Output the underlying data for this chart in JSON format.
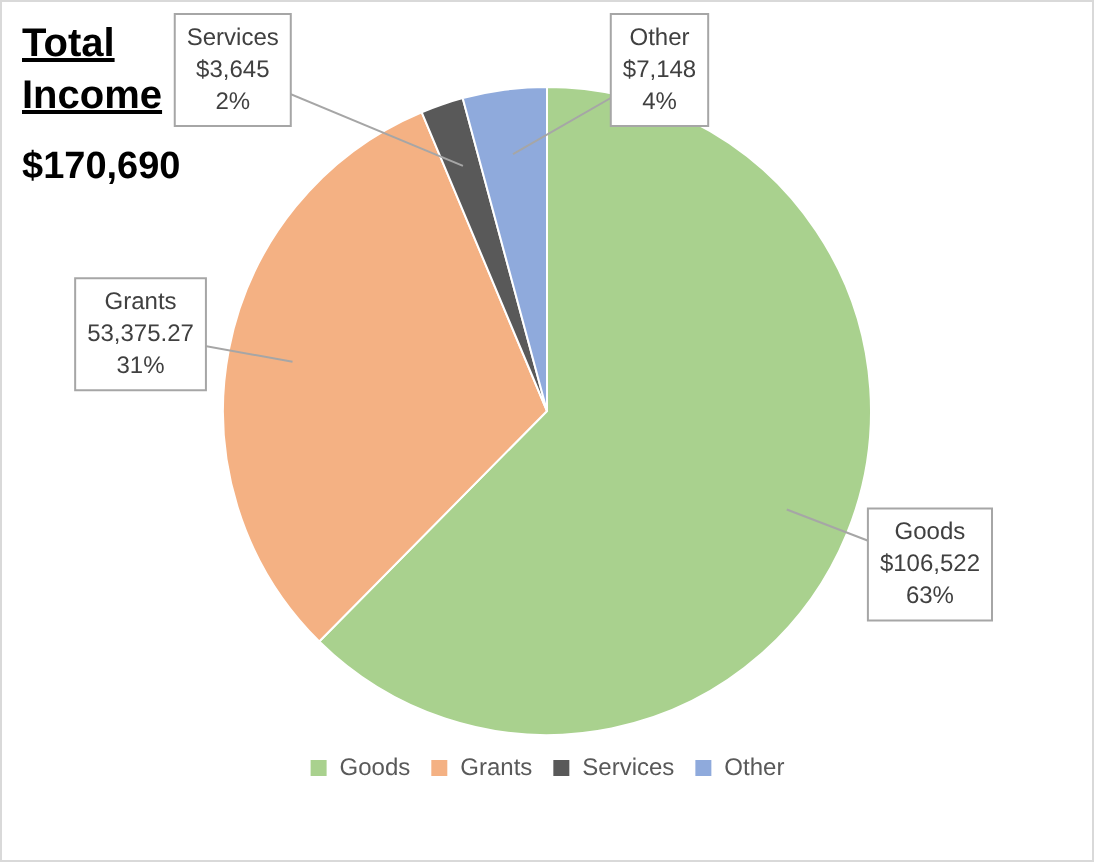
{
  "chart_data": {
    "type": "pie",
    "title": "Total Income",
    "subtitle": "$170,690",
    "categories": [
      "Goods",
      "Grants",
      "Services",
      "Other"
    ],
    "values": [
      106522,
      53375.27,
      3645,
      7148
    ],
    "colors": [
      "#a9d18e",
      "#f4b183",
      "#595959",
      "#8faadc"
    ],
    "value_labels": [
      "$106,522\n63%",
      "53,375.27\n31%",
      "$3,645\n2%",
      "$7,148\n4%"
    ],
    "legend": "bottom"
  }
}
